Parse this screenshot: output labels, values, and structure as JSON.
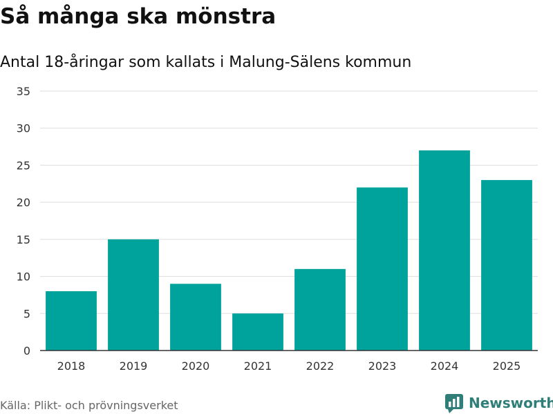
{
  "title": "Så många ska mönstra",
  "subtitle": "Antal 18-åringar som kallats i Malung-Sälens kommun",
  "source": "Källa: Plikt- och prövningsverket",
  "brand": "Newsworthy",
  "colors": {
    "bar": "#00a39b",
    "grid": "#dddddd",
    "axis": "#333333",
    "brand": "#2f7f78"
  },
  "chart_data": {
    "type": "bar",
    "categories": [
      "2018",
      "2019",
      "2020",
      "2021",
      "2022",
      "2023",
      "2024",
      "2025"
    ],
    "values": [
      8,
      15,
      9,
      5,
      11,
      22,
      27,
      23
    ],
    "yticks": [
      "0",
      "5",
      "10",
      "15",
      "20",
      "25",
      "30",
      "35"
    ],
    "ylim": [
      0,
      35
    ],
    "xlabel": "",
    "ylabel": "",
    "grid": true
  }
}
